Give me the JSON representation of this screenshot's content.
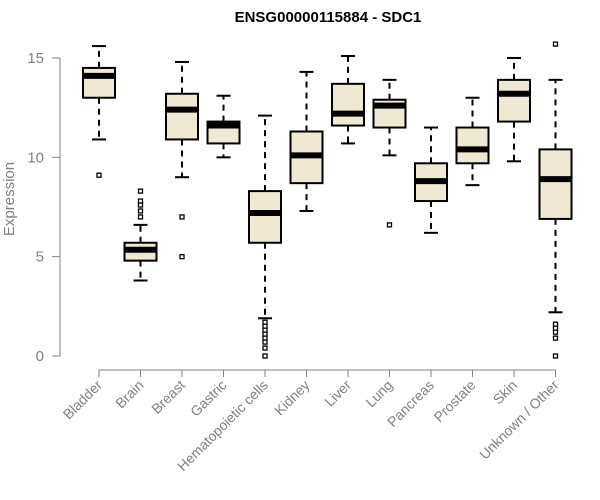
{
  "chart_data": {
    "type": "boxplot",
    "title": "ENSG00000115884 - SDC1",
    "xlabel": "",
    "ylabel": "Expression",
    "ylim": [
      0,
      15.9
    ],
    "yticks": [
      0,
      5,
      10,
      15
    ],
    "colors": {
      "box_fill": "#efe8d3",
      "stroke": "#000000",
      "axis": "#808080"
    },
    "categories": [
      "Bladder",
      "Brain",
      "Breast",
      "Gastric",
      "Hematopoietic cells",
      "Kidney",
      "Liver",
      "Lung",
      "Pancreas",
      "Prostate",
      "Skin",
      "Unknown / Other"
    ],
    "boxes": [
      {
        "name": "Bladder",
        "min": 10.9,
        "q1": 13.0,
        "median": 14.1,
        "q3": 14.5,
        "max": 15.6,
        "outliers": [
          9.1
        ]
      },
      {
        "name": "Brain",
        "min": 3.8,
        "q1": 4.8,
        "median": 5.35,
        "q3": 5.7,
        "max": 6.6,
        "outliers": [
          7.0,
          7.3,
          7.6,
          7.8,
          8.3
        ]
      },
      {
        "name": "Breast",
        "min": 9.0,
        "q1": 10.9,
        "median": 12.4,
        "q3": 13.2,
        "max": 14.8,
        "outliers": [
          7.0,
          5.0
        ]
      },
      {
        "name": "Gastric",
        "min": 10.0,
        "q1": 10.7,
        "median": 11.6,
        "q3": 11.8,
        "max": 13.1,
        "outliers": []
      },
      {
        "name": "Hematopoietic cells",
        "min": 1.9,
        "q1": 5.7,
        "median": 7.2,
        "q3": 8.3,
        "max": 12.1,
        "outliers": [
          1.7,
          1.5,
          1.3,
          1.1,
          0.9,
          0.7,
          0.4,
          0.0
        ]
      },
      {
        "name": "Kidney",
        "min": 7.3,
        "q1": 8.7,
        "median": 10.1,
        "q3": 11.3,
        "max": 14.3,
        "outliers": []
      },
      {
        "name": "Liver",
        "min": 10.7,
        "q1": 11.6,
        "median": 12.2,
        "q3": 13.7,
        "max": 15.1,
        "outliers": []
      },
      {
        "name": "Lung",
        "min": 10.1,
        "q1": 11.5,
        "median": 12.6,
        "q3": 12.9,
        "max": 13.9,
        "outliers": [
          6.6
        ]
      },
      {
        "name": "Pancreas",
        "min": 6.2,
        "q1": 7.8,
        "median": 8.8,
        "q3": 9.7,
        "max": 11.5,
        "outliers": []
      },
      {
        "name": "Prostate",
        "min": 8.6,
        "q1": 9.7,
        "median": 10.4,
        "q3": 11.5,
        "max": 13.0,
        "outliers": []
      },
      {
        "name": "Skin",
        "min": 9.8,
        "q1": 11.8,
        "median": 13.2,
        "q3": 13.9,
        "max": 15.0,
        "outliers": []
      },
      {
        "name": "Unknown / Other",
        "min": 2.2,
        "q1": 6.9,
        "median": 8.9,
        "q3": 10.4,
        "max": 13.9,
        "outliers": [
          15.7,
          1.6,
          1.4,
          1.2,
          0.9,
          0.0
        ]
      }
    ]
  }
}
